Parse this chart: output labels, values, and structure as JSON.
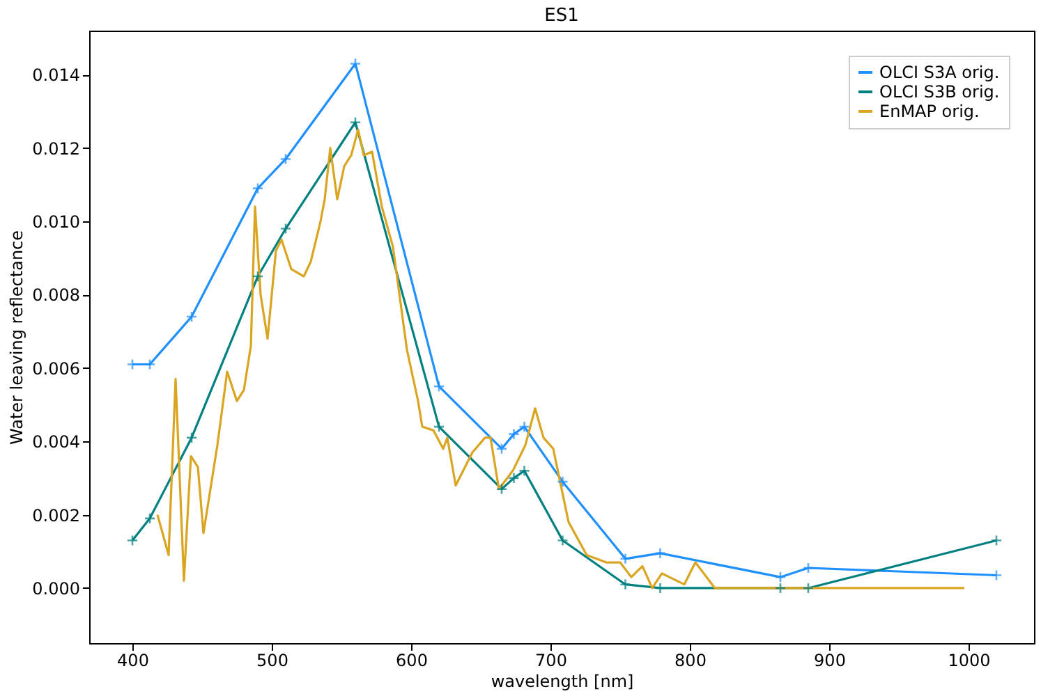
{
  "chart_data": {
    "type": "line",
    "title": "ES1",
    "xlabel": "wavelength [nm]",
    "ylabel": "Water leaving reflectance",
    "xlim": [
      369,
      1047
    ],
    "ylim": [
      -0.0015,
      0.0152
    ],
    "xticks": [
      400,
      500,
      600,
      700,
      800,
      900,
      1000
    ],
    "yticks": [
      {
        "value": 0,
        "label": "0.000"
      },
      {
        "value": 0.002,
        "label": "0.002"
      },
      {
        "value": 0.004,
        "label": "0.004"
      },
      {
        "value": 0.006,
        "label": "0.006"
      },
      {
        "value": 0.008,
        "label": "0.008"
      },
      {
        "value": 0.01,
        "label": "0.010"
      },
      {
        "value": 0.012,
        "label": "0.012"
      },
      {
        "value": 0.014,
        "label": "0.014"
      }
    ],
    "grid": false,
    "legend": "top right",
    "line_style": "solid",
    "series": [
      {
        "name": "OLCI S3A orig.",
        "color": "#1e90ff",
        "marker": "cross",
        "x": [
          400,
          412.5,
          442.5,
          490,
          510,
          560,
          620,
          665,
          673.75,
          681.25,
          708.75,
          753.75,
          778.75,
          865,
          885,
          1020
        ],
        "values": [
          0.0061,
          0.0061,
          0.0074,
          0.0109,
          0.0117,
          0.0143,
          0.0055,
          0.0038,
          0.0042,
          0.0044,
          0.0029,
          0.0008,
          0.00095,
          0.0003,
          0.00055,
          0.00035
        ]
      },
      {
        "name": "OLCI S3B orig.",
        "color": "#008080",
        "marker": "cross",
        "x": [
          400,
          412.5,
          442.5,
          490,
          510,
          560,
          620,
          665,
          673.75,
          681.25,
          708.75,
          753.75,
          778.75,
          865,
          885,
          1020
        ],
        "values": [
          0.0013,
          0.0019,
          0.0041,
          0.0085,
          0.0098,
          0.0127,
          0.0044,
          0.0027,
          0.003,
          0.0032,
          0.0013,
          0.0001,
          0.0,
          0.0,
          0.0,
          0.0013
        ]
      },
      {
        "name": "EnMAP orig.",
        "color": "#daa520",
        "marker": "none",
        "x": [
          418,
          426,
          431,
          437,
          442,
          447,
          451,
          461,
          468,
          475,
          480,
          485,
          488,
          492,
          497,
          503,
          507,
          514,
          523,
          528,
          535,
          538,
          542,
          547,
          552,
          557,
          562,
          566,
          572,
          579,
          587,
          597,
          605,
          608,
          616,
          623,
          626,
          632,
          644,
          653,
          657,
          663,
          673,
          682,
          689,
          695,
          702,
          708,
          713,
          726,
          740,
          750,
          758,
          766,
          773,
          780,
          796,
          804,
          818,
          997
        ],
        "values": [
          0.002,
          0.0009,
          0.0057,
          0.0002,
          0.0036,
          0.0033,
          0.0015,
          0.0039,
          0.0059,
          0.0051,
          0.0054,
          0.0066,
          0.0104,
          0.008,
          0.0068,
          0.0092,
          0.0095,
          0.0087,
          0.0085,
          0.0089,
          0.01,
          0.0106,
          0.012,
          0.0106,
          0.0115,
          0.0118,
          0.0125,
          0.0118,
          0.0119,
          0.0104,
          0.0093,
          0.0065,
          0.0051,
          0.0044,
          0.0043,
          0.0038,
          0.0041,
          0.0028,
          0.0037,
          0.0041,
          0.0041,
          0.0027,
          0.0032,
          0.0039,
          0.0049,
          0.0041,
          0.0038,
          0.0027,
          0.0018,
          0.0009,
          0.0007,
          0.0007,
          0.0003,
          0.0006,
          0.0,
          0.0004,
          0.0001,
          0.0007,
          0.0,
          0.0
        ]
      }
    ]
  }
}
